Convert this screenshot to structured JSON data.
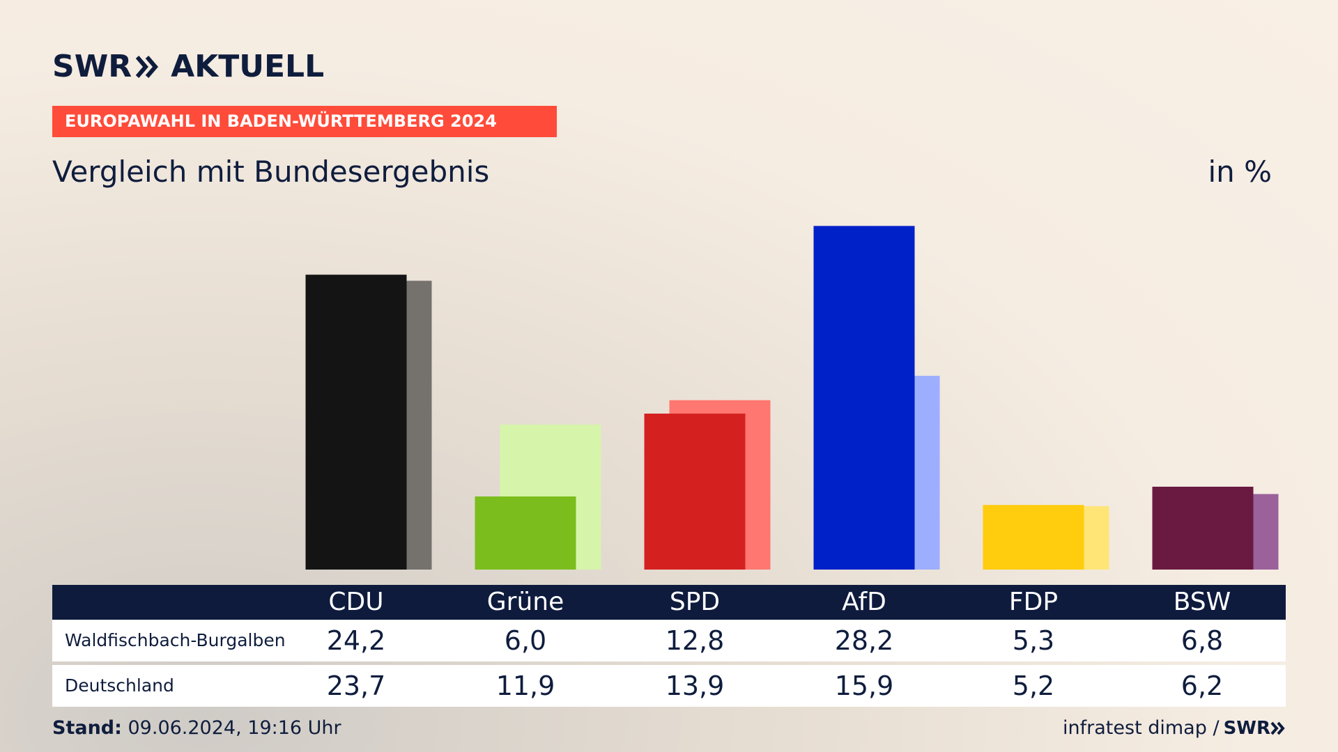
{
  "brand": {
    "logo_part1": "SWR",
    "logo_part2": "AKTUELL",
    "color": "#0f1d3d"
  },
  "banner": {
    "text": "EUROPAWAHL IN BADEN-WÜRTTEMBERG 2024",
    "color": "#ff4b3a"
  },
  "chart_data": {
    "type": "bar",
    "title": "Vergleich mit Bundesergebnis",
    "unit": "in %",
    "categories": [
      "CDU",
      "Grüne",
      "SPD",
      "AfD",
      "FDP",
      "BSW"
    ],
    "series": [
      {
        "name": "Waldfischbach-Burgalben",
        "values": [
          24.2,
          6.0,
          12.8,
          28.2,
          5.3,
          6.8
        ],
        "colors": [
          "#141414",
          "#7abd1c",
          "#d52020",
          "#0020c8",
          "#ffcc0e",
          "#6a1a41"
        ]
      },
      {
        "name": "Deutschland",
        "values": [
          23.7,
          11.9,
          13.9,
          15.9,
          5.2,
          6.2
        ],
        "colors": [
          "#75716d",
          "#d6f5aa",
          "#ff7770",
          "#9daeff",
          "#ffe576",
          "#9a619a"
        ]
      }
    ]
  },
  "table": {
    "headers": [
      "CDU",
      "Grüne",
      "SPD",
      "AfD",
      "FDP",
      "BSW"
    ],
    "rows": [
      {
        "label": "Waldfischbach-Burgalben",
        "values": [
          "24,2",
          "6,0",
          "12,8",
          "28,2",
          "5,3",
          "6,8"
        ]
      },
      {
        "label": "Deutschland",
        "values": [
          "23,7",
          "11,9",
          "13,9",
          "15,9",
          "5,2",
          "6,2"
        ]
      }
    ]
  },
  "footer": {
    "stand_label": "Stand:",
    "stand_value": " 09.06.2024, 19:16 Uhr",
    "source": "infratest dimap /",
    "source_logo": "SWR"
  }
}
